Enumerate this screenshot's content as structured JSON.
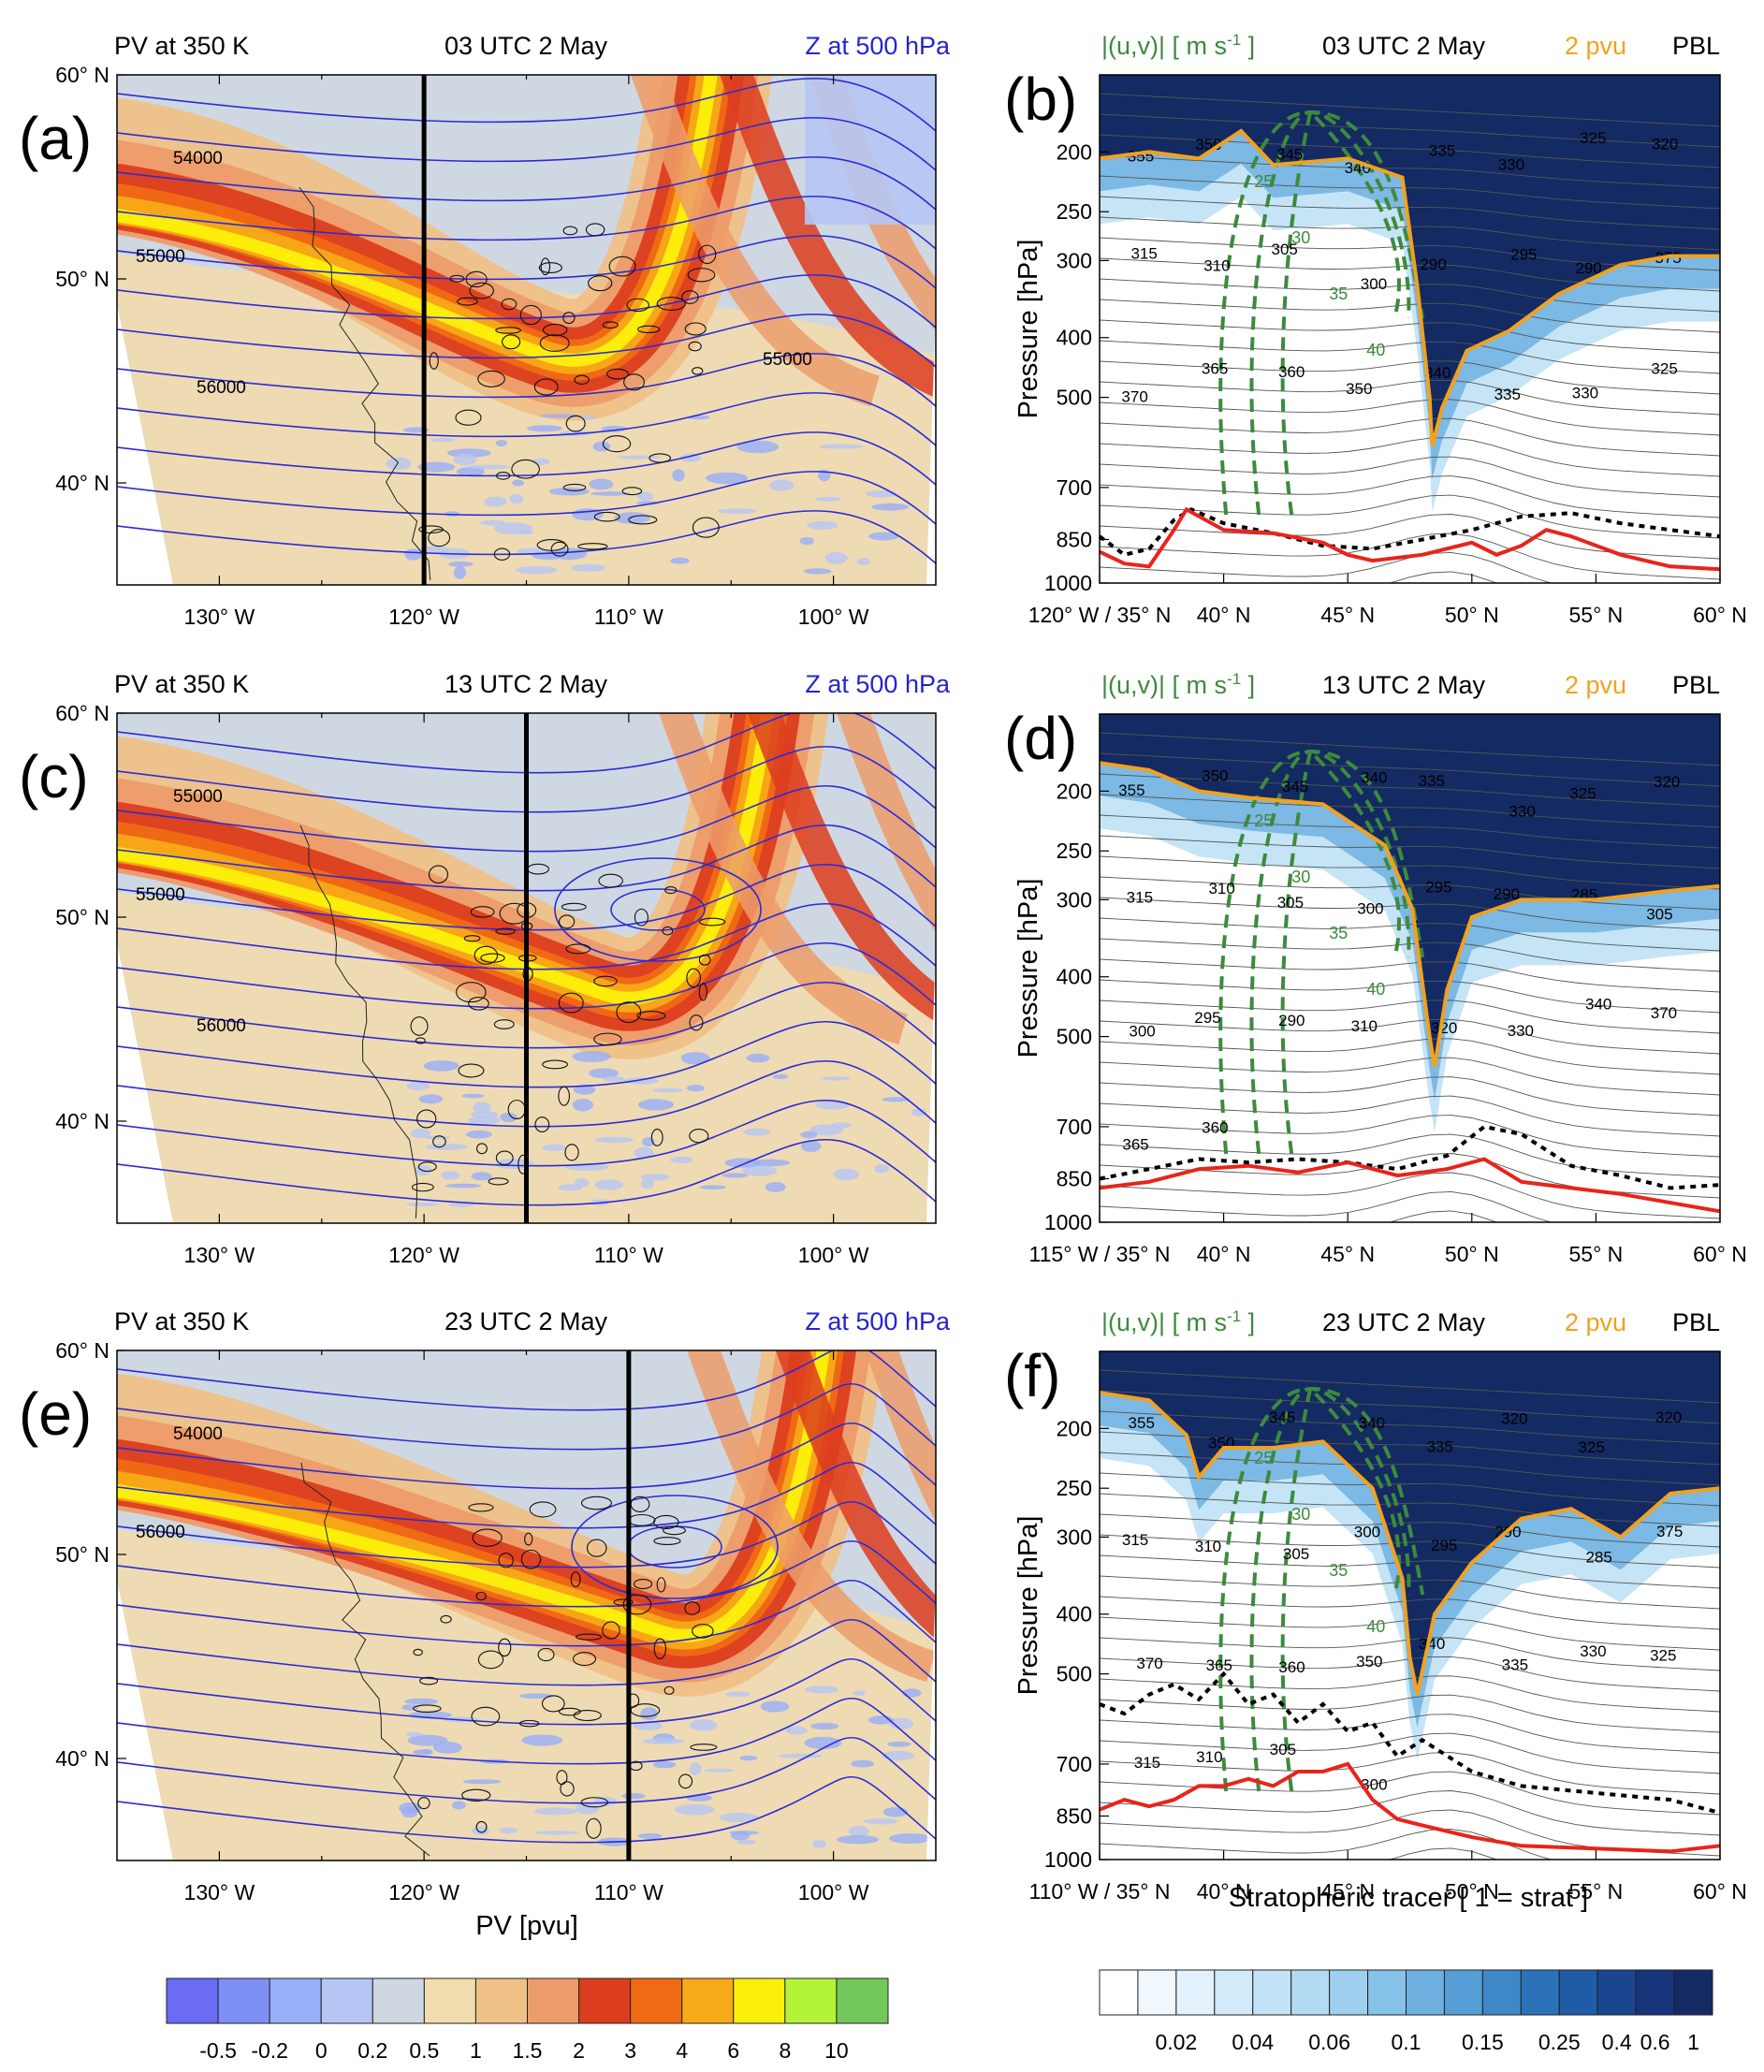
{
  "chart_data": {
    "type": "multi-panel",
    "left_colorbar": {
      "title": "PV [pvu]",
      "ticks": [
        "-0.5",
        "-0.2",
        "0",
        "0.2",
        "0.5",
        "1",
        "1.5",
        "2",
        "3",
        "4",
        "6",
        "8",
        "10"
      ],
      "colors": [
        "#6a6cf4",
        "#7e90f6",
        "#97aef8",
        "#b6c6f4",
        "#cfd8e2",
        "#f1dcae",
        "#efc187",
        "#ec9c6a",
        "#dc3d1e",
        "#f06a14",
        "#f7aa18",
        "#fcf00a",
        "#b4f438",
        "#74c85a"
      ]
    },
    "right_colorbar": {
      "title": "Stratopheric tracer [ 1 = strat ]",
      "ticks": [
        "0.02",
        "0.04",
        "0.06",
        "0.1",
        "0.15",
        "0.25",
        "0.4",
        "0.6",
        "1"
      ],
      "colors": [
        "#ffffff",
        "#f0f8fd",
        "#e2f1fb",
        "#d3eaf9",
        "#c3e3f6",
        "#b2dbf3",
        "#9fd0ef",
        "#87c2e9",
        "#6eb1e0",
        "#559ed5",
        "#3e88c8",
        "#2b72b9",
        "#1f5ba6",
        "#1a4690",
        "#17357a",
        "#132a63"
      ]
    },
    "map_panels": [
      {
        "label": "(a)",
        "left_title": "PV at 350 K",
        "center_title": "03 UTC 2 May",
        "right_title": "Z at 500 hPa",
        "xticks": [
          "130° W",
          "120° W",
          "110° W",
          "100° W"
        ],
        "yticks": [
          "60° N",
          "50° N",
          "40° N"
        ],
        "contour_labels": [
          "54000",
          "55000",
          "56000",
          "55000"
        ],
        "section_lon": "120° W"
      },
      {
        "label": "(c)",
        "left_title": "PV at 350 K",
        "center_title": "13 UTC 2 May",
        "right_title": "Z at 500 hPa",
        "xticks": [
          "130° W",
          "120° W",
          "110° W",
          "100° W"
        ],
        "yticks": [
          "60° N",
          "50° N",
          "40° N"
        ],
        "contour_labels": [
          "55000",
          "55000",
          "56000"
        ],
        "section_lon": "115° W"
      },
      {
        "label": "(e)",
        "left_title": "PV at 350 K",
        "center_title": "23 UTC 2 May",
        "right_title": "Z at 500 hPa",
        "xticks": [
          "130° W",
          "120° W",
          "110° W",
          "100° W"
        ],
        "yticks": [
          "60° N",
          "50° N",
          "40° N"
        ],
        "contour_labels": [
          "54000",
          "56000"
        ],
        "section_lon": "110° W"
      }
    ],
    "section_panels": [
      {
        "label": "(b)",
        "left_title": "|(u,v)| [ m s",
        "left_title_sup": "-1",
        "left_title_end": " ]",
        "center_title": "03 UTC 2 May",
        "title_2pvu": "2 pvu",
        "title_pbl": "PBL",
        "ylabel": "Pressure [hPa]",
        "yticks": [
          "200",
          "250",
          "300",
          "400",
          "500",
          "700",
          "850",
          "1000"
        ],
        "xticks": [
          "120° W / 35° N",
          "40° N",
          "45° N",
          "50° N",
          "55° N",
          "60° N"
        ],
        "ylim": [
          1000,
          150
        ],
        "xlim": [
          35,
          60
        ],
        "tropopause": [
          [
            35,
            205
          ],
          [
            37,
            200
          ],
          [
            39,
            205
          ],
          [
            40.7,
            185
          ],
          [
            42,
            210
          ],
          [
            45,
            205
          ],
          [
            47.2,
            220
          ],
          [
            47.8,
            330
          ],
          [
            48.3,
            500
          ],
          [
            48.4,
            600
          ],
          [
            48.8,
            520
          ],
          [
            49.8,
            420
          ],
          [
            51.5,
            390
          ],
          [
            53.5,
            340
          ],
          [
            56,
            305
          ],
          [
            58,
            295
          ],
          [
            60,
            295
          ]
        ],
        "pbl_top": [
          [
            35,
            840
          ],
          [
            36,
            900
          ],
          [
            37,
            880
          ],
          [
            38,
            790
          ],
          [
            38.7,
            760
          ],
          [
            40,
            800
          ],
          [
            42,
            830
          ],
          [
            44,
            870
          ],
          [
            46,
            880
          ],
          [
            48,
            850
          ],
          [
            50,
            820
          ],
          [
            52,
            780
          ],
          [
            54,
            770
          ],
          [
            56,
            800
          ],
          [
            58,
            820
          ],
          [
            60,
            840
          ]
        ],
        "surface": [
          [
            35,
            890
          ],
          [
            36,
            930
          ],
          [
            37,
            940
          ],
          [
            38,
            820
          ],
          [
            38.5,
            760
          ],
          [
            40,
            820
          ],
          [
            42,
            830
          ],
          [
            44,
            860
          ],
          [
            45,
            900
          ],
          [
            46,
            920
          ],
          [
            48,
            900
          ],
          [
            50,
            860
          ],
          [
            51,
            900
          ],
          [
            52,
            870
          ],
          [
            53,
            820
          ],
          [
            54,
            840
          ],
          [
            56,
            900
          ],
          [
            58,
            940
          ],
          [
            60,
            950
          ]
        ],
        "theta_labels": [
          "355",
          "350",
          "345",
          "340",
          "335",
          "330",
          "325",
          "320",
          "315",
          "310",
          "305",
          "300",
          "290",
          "295",
          "290",
          "375",
          "370",
          "365",
          "360",
          "350",
          "340",
          "335",
          "330",
          "325"
        ]
      },
      {
        "label": "(d)",
        "left_title": "|(u,v)| [ m s",
        "left_title_sup": "-1",
        "left_title_end": " ]",
        "center_title": "13 UTC 2 May",
        "title_2pvu": "2 pvu",
        "title_pbl": "PBL",
        "ylabel": "Pressure [hPa]",
        "yticks": [
          "200",
          "250",
          "300",
          "400",
          "500",
          "700",
          "850",
          "1000"
        ],
        "xticks": [
          "115° W / 35° N",
          "40° N",
          "45° N",
          "50° N",
          "55° N",
          "60° N"
        ],
        "ylim": [
          1000,
          150
        ],
        "xlim": [
          35,
          60
        ],
        "tropopause": [
          [
            35,
            180
          ],
          [
            37,
            185
          ],
          [
            39,
            200
          ],
          [
            41,
            205
          ],
          [
            44,
            210
          ],
          [
            46.5,
            245
          ],
          [
            47.6,
            310
          ],
          [
            48.3,
            500
          ],
          [
            48.5,
            560
          ],
          [
            49,
            420
          ],
          [
            50,
            320
          ],
          [
            52,
            300
          ],
          [
            55,
            300
          ],
          [
            58,
            290
          ],
          [
            60,
            285
          ]
        ],
        "pbl_top": [
          [
            35,
            850
          ],
          [
            37,
            820
          ],
          [
            39,
            790
          ],
          [
            41,
            800
          ],
          [
            43,
            790
          ],
          [
            45,
            800
          ],
          [
            47,
            820
          ],
          [
            49,
            780
          ],
          [
            50.5,
            700
          ],
          [
            52,
            720
          ],
          [
            54,
            810
          ],
          [
            56,
            840
          ],
          [
            58,
            880
          ],
          [
            60,
            870
          ]
        ],
        "surface": [
          [
            35,
            880
          ],
          [
            37,
            860
          ],
          [
            39,
            820
          ],
          [
            41,
            810
          ],
          [
            43,
            830
          ],
          [
            45,
            800
          ],
          [
            47,
            840
          ],
          [
            49,
            820
          ],
          [
            50.5,
            790
          ],
          [
            52,
            860
          ],
          [
            54,
            880
          ],
          [
            56,
            900
          ],
          [
            58,
            930
          ],
          [
            60,
            960
          ]
        ],
        "theta_labels": [
          "355",
          "350",
          "345",
          "340",
          "335",
          "330",
          "325",
          "320",
          "315",
          "310",
          "305",
          "300",
          "295",
          "290",
          "285",
          "305",
          "300",
          "295",
          "290",
          "310",
          "320",
          "330",
          "340",
          "370",
          "365",
          "360"
        ]
      },
      {
        "label": "(f)",
        "left_title": "|(u,v)| [ m s",
        "left_title_sup": "-1",
        "left_title_end": " ]",
        "center_title": "23 UTC 2 May",
        "title_2pvu": "2 pvu",
        "title_pbl": "PBL",
        "ylabel": "Pressure [hPa]",
        "yticks": [
          "200",
          "250",
          "300",
          "400",
          "500",
          "700",
          "850",
          "1000"
        ],
        "xticks": [
          "110° W / 35° N",
          "40° N",
          "45° N",
          "50° N",
          "55° N",
          "60° N"
        ],
        "ylim": [
          1000,
          150
        ],
        "xlim": [
          35,
          60
        ],
        "tropopause": [
          [
            35,
            175
          ],
          [
            37,
            180
          ],
          [
            38.5,
            205
          ],
          [
            39,
            240
          ],
          [
            40,
            215
          ],
          [
            42,
            215
          ],
          [
            44,
            210
          ],
          [
            46,
            250
          ],
          [
            47.2,
            350
          ],
          [
            47.5,
            470
          ],
          [
            47.8,
            540
          ],
          [
            48.5,
            400
          ],
          [
            50,
            330
          ],
          [
            52,
            280
          ],
          [
            54,
            270
          ],
          [
            56,
            300
          ],
          [
            58,
            255
          ],
          [
            60,
            250
          ]
        ],
        "pbl_top": [
          [
            35,
            560
          ],
          [
            36,
            580
          ],
          [
            37,
            540
          ],
          [
            38,
            520
          ],
          [
            39,
            550
          ],
          [
            40,
            500
          ],
          [
            41,
            560
          ],
          [
            42,
            540
          ],
          [
            43,
            600
          ],
          [
            44,
            560
          ],
          [
            45,
            620
          ],
          [
            46,
            600
          ],
          [
            47,
            680
          ],
          [
            48,
            640
          ],
          [
            50,
            720
          ],
          [
            52,
            760
          ],
          [
            55,
            780
          ],
          [
            58,
            800
          ],
          [
            60,
            840
          ]
        ],
        "surface": [
          [
            35,
            830
          ],
          [
            36,
            800
          ],
          [
            37,
            820
          ],
          [
            38,
            800
          ],
          [
            39,
            760
          ],
          [
            40,
            760
          ],
          [
            41,
            740
          ],
          [
            42,
            760
          ],
          [
            43,
            720
          ],
          [
            44,
            720
          ],
          [
            45,
            700
          ],
          [
            46,
            800
          ],
          [
            47,
            860
          ],
          [
            48,
            880
          ],
          [
            50,
            920
          ],
          [
            52,
            950
          ],
          [
            55,
            960
          ],
          [
            58,
            970
          ],
          [
            60,
            950
          ]
        ],
        "theta_labels": [
          "355",
          "350",
          "345",
          "340",
          "335",
          "320",
          "325",
          "320",
          "315",
          "310",
          "305",
          "300",
          "295",
          "290",
          "285",
          "375",
          "370",
          "365",
          "360",
          "350",
          "340",
          "335",
          "330",
          "325",
          "315",
          "310",
          "305",
          "300"
        ]
      }
    ],
    "wind_contour_labels": [
      "25",
      "30",
      "35",
      "40"
    ],
    "colors": {
      "geopotential": "#2b2bd6",
      "jet": "#3d8a3d",
      "tropopause": "#f2a11e",
      "surface": "#e8241c",
      "pbl": "#000000",
      "title_blue": "#2424d0",
      "title_green": "#3d8a3d",
      "title_orange": "#f2a11e"
    }
  }
}
